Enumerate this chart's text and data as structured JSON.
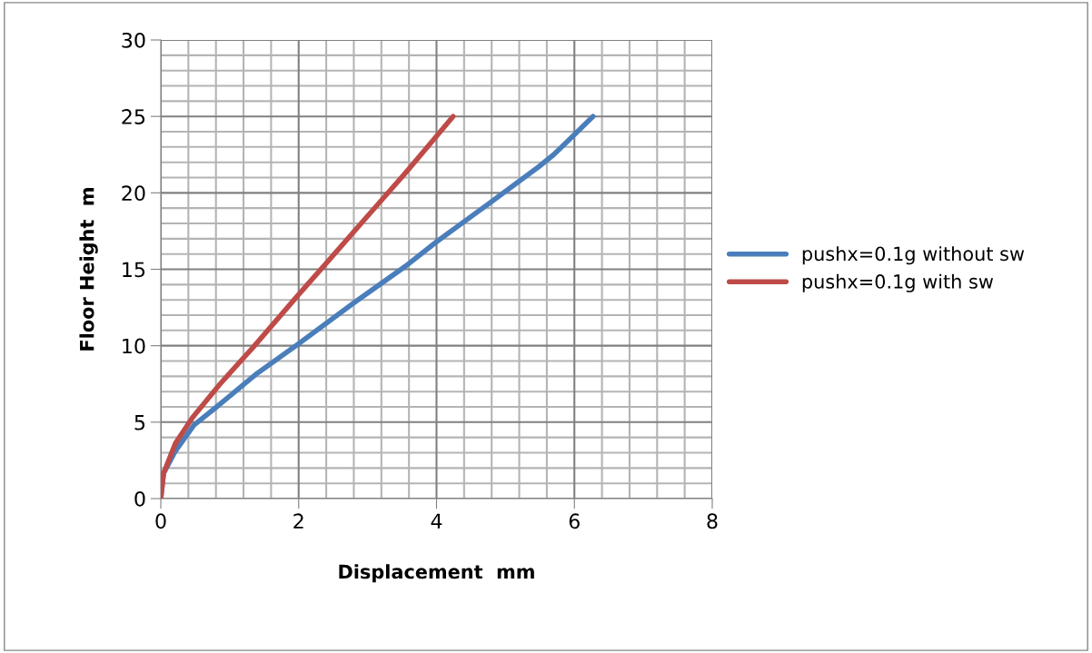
{
  "chart_data": {
    "type": "line",
    "xlabel": "Displacement  mm",
    "ylabel": "Floor Height  m",
    "xlim": [
      0,
      8
    ],
    "xticks": [
      0,
      2,
      4,
      6,
      8
    ],
    "ylim": [
      0,
      30
    ],
    "yticks": [
      0,
      5,
      10,
      15,
      20,
      25,
      30
    ],
    "grid": true,
    "legend": "right",
    "marker": "none",
    "line_style": "solid",
    "series": [
      {
        "name": "pushx=0.1g without sw",
        "color": "#4a7ebb",
        "x": [
          0,
          0.04,
          0.21,
          0.48,
          0.81,
          1.4,
          1.99,
          2.8,
          3.55,
          4.0,
          4.79,
          5.48,
          5.7,
          6.02,
          6.27
        ],
        "values": [
          0,
          1.65,
          3.1,
          4.8,
          6.0,
          8.2,
          10.1,
          12.8,
          15.2,
          16.8,
          19.4,
          21.7,
          22.5,
          23.9,
          25
        ]
      },
      {
        "name": "pushx=0.1g with sw",
        "color": "#be4b48",
        "x": [
          0,
          0.04,
          0.21,
          0.46,
          0.86,
          1.34,
          1.99,
          2.42,
          3.12,
          3.55,
          3.98,
          4.24
        ],
        "values": [
          0,
          1.65,
          3.6,
          5.3,
          7.5,
          9.9,
          13.3,
          15.5,
          19.1,
          21.3,
          23.6,
          25
        ]
      }
    ]
  }
}
